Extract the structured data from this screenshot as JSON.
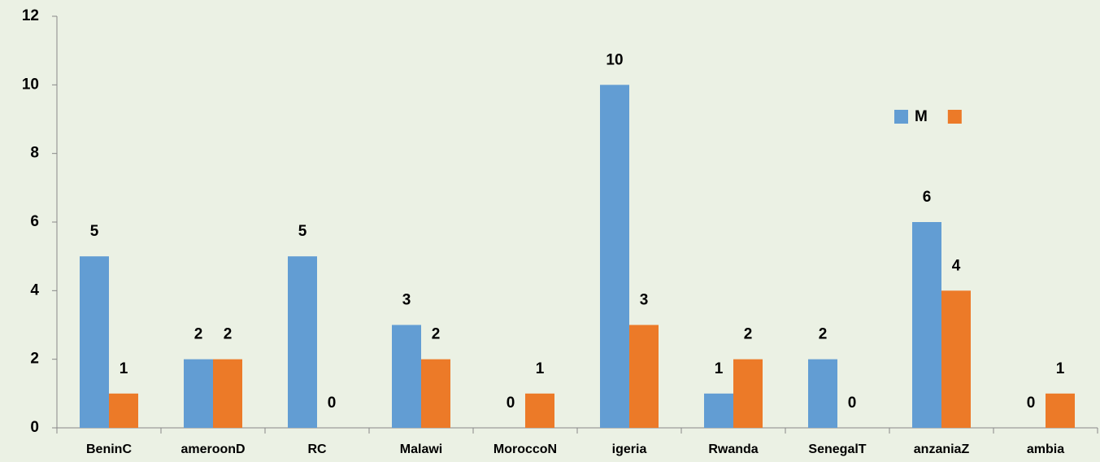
{
  "chart_data": {
    "type": "bar",
    "categories": [
      "BeninC",
      "ameroonD",
      "RC",
      "Malawi",
      "MoroccoN",
      "igeria",
      "Rwanda",
      "SenegalT",
      "anzaniaZ",
      "ambia"
    ],
    "series": [
      {
        "name": "M",
        "color": "#629dd3",
        "values": [
          5,
          2,
          5,
          3,
          0,
          10,
          1,
          2,
          6,
          0
        ]
      },
      {
        "color": "#ec7a28",
        "values": [
          1,
          2,
          0,
          2,
          1,
          3,
          2,
          0,
          4,
          1
        ]
      }
    ],
    "ylim": [
      0,
      12
    ],
    "yticks": [
      0,
      2,
      4,
      6,
      8,
      10,
      12
    ],
    "grid": false,
    "legend": "upper right"
  }
}
